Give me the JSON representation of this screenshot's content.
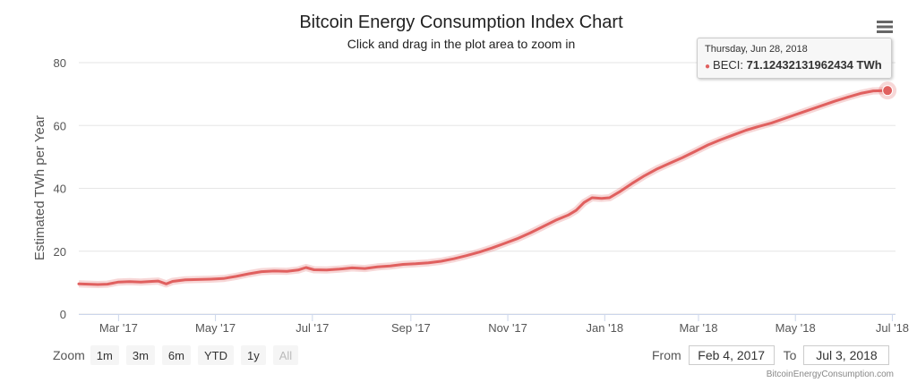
{
  "chart_data": {
    "type": "line",
    "title": "Bitcoin Energy Consumption Index Chart",
    "subtitle": "Click and drag in the plot area to zoom in",
    "ylabel": "Estimated TWh per Year",
    "xlabel": "",
    "ylim": [
      0,
      80
    ],
    "y_ticks": [
      0,
      20,
      40,
      60,
      80
    ],
    "x_range": [
      "2017-02-04",
      "2018-07-03"
    ],
    "x_ticks": [
      {
        "date": "2017-03-01",
        "label": "Mar '17"
      },
      {
        "date": "2017-05-01",
        "label": "May '17"
      },
      {
        "date": "2017-07-01",
        "label": "Jul '17"
      },
      {
        "date": "2017-09-01",
        "label": "Sep '17"
      },
      {
        "date": "2017-11-01",
        "label": "Nov '17"
      },
      {
        "date": "2018-01-01",
        "label": "Jan '18"
      },
      {
        "date": "2018-03-01",
        "label": "Mar '18"
      },
      {
        "date": "2018-05-01",
        "label": "May '18"
      },
      {
        "date": "2018-07-01",
        "label": "Jul '18"
      }
    ],
    "grid": true,
    "series": [
      {
        "name": "BECI",
        "color": "#e0605f",
        "points": [
          [
            "2017-02-04",
            9.6
          ],
          [
            "2017-02-10",
            9.5
          ],
          [
            "2017-02-16",
            9.4
          ],
          [
            "2017-02-22",
            9.5
          ],
          [
            "2017-03-01",
            10.2
          ],
          [
            "2017-03-08",
            10.3
          ],
          [
            "2017-03-15",
            10.2
          ],
          [
            "2017-03-22",
            10.4
          ],
          [
            "2017-03-26",
            10.5
          ],
          [
            "2017-03-31",
            9.6
          ],
          [
            "2017-04-04",
            10.4
          ],
          [
            "2017-04-12",
            10.9
          ],
          [
            "2017-04-20",
            11.0
          ],
          [
            "2017-04-28",
            11.1
          ],
          [
            "2017-05-06",
            11.3
          ],
          [
            "2017-05-14",
            12.0
          ],
          [
            "2017-05-22",
            12.8
          ],
          [
            "2017-05-30",
            13.5
          ],
          [
            "2017-06-07",
            13.7
          ],
          [
            "2017-06-15",
            13.6
          ],
          [
            "2017-06-22",
            14.0
          ],
          [
            "2017-06-27",
            14.8
          ],
          [
            "2017-07-02",
            14.1
          ],
          [
            "2017-07-10",
            14.0
          ],
          [
            "2017-07-18",
            14.3
          ],
          [
            "2017-07-26",
            14.7
          ],
          [
            "2017-08-03",
            14.5
          ],
          [
            "2017-08-11",
            15.0
          ],
          [
            "2017-08-19",
            15.3
          ],
          [
            "2017-08-27",
            15.8
          ],
          [
            "2017-09-04",
            16.0
          ],
          [
            "2017-09-12",
            16.3
          ],
          [
            "2017-09-20",
            16.8
          ],
          [
            "2017-09-28",
            17.6
          ],
          [
            "2017-10-06",
            18.6
          ],
          [
            "2017-10-14",
            19.7
          ],
          [
            "2017-10-22",
            21.0
          ],
          [
            "2017-10-30",
            22.5
          ],
          [
            "2017-11-07",
            24.0
          ],
          [
            "2017-11-15",
            25.8
          ],
          [
            "2017-11-23",
            27.8
          ],
          [
            "2017-12-01",
            29.8
          ],
          [
            "2017-12-09",
            31.5
          ],
          [
            "2017-12-14",
            33.0
          ],
          [
            "2017-12-19",
            35.5
          ],
          [
            "2017-12-24",
            37.0
          ],
          [
            "2017-12-30",
            36.8
          ],
          [
            "2018-01-04",
            37.0
          ],
          [
            "2018-01-10",
            38.8
          ],
          [
            "2018-01-18",
            41.5
          ],
          [
            "2018-01-26",
            44.0
          ],
          [
            "2018-02-03",
            46.2
          ],
          [
            "2018-02-11",
            48.0
          ],
          [
            "2018-02-19",
            49.8
          ],
          [
            "2018-02-27",
            51.8
          ],
          [
            "2018-03-07",
            53.8
          ],
          [
            "2018-03-15",
            55.5
          ],
          [
            "2018-03-23",
            57.0
          ],
          [
            "2018-03-31",
            58.5
          ],
          [
            "2018-04-08",
            59.7
          ],
          [
            "2018-04-16",
            60.8
          ],
          [
            "2018-04-24",
            62.2
          ],
          [
            "2018-05-02",
            63.6
          ],
          [
            "2018-05-10",
            65.0
          ],
          [
            "2018-05-18",
            66.4
          ],
          [
            "2018-05-26",
            67.8
          ],
          [
            "2018-06-03",
            69.0
          ],
          [
            "2018-06-11",
            70.2
          ],
          [
            "2018-06-19",
            71.0
          ],
          [
            "2018-06-28",
            71.12
          ]
        ]
      }
    ],
    "highlight": {
      "date": "2018-06-28",
      "value": 71.12432131962434
    }
  },
  "tooltip": {
    "date": "Thursday, Jun 28, 2018",
    "series": "BECI",
    "value_text": "71.12432131962434 TWh"
  },
  "zoom": {
    "label": "Zoom",
    "buttons": [
      "1m",
      "3m",
      "6m",
      "YTD",
      "1y",
      "All"
    ]
  },
  "range": {
    "from_label": "From",
    "from_value": "Feb 4, 2017",
    "to_label": "To",
    "to_value": "Jul 3, 2018"
  },
  "credits": "BitcoinEnergyConsumption.com",
  "menu_icon": "hamburger-menu-icon"
}
